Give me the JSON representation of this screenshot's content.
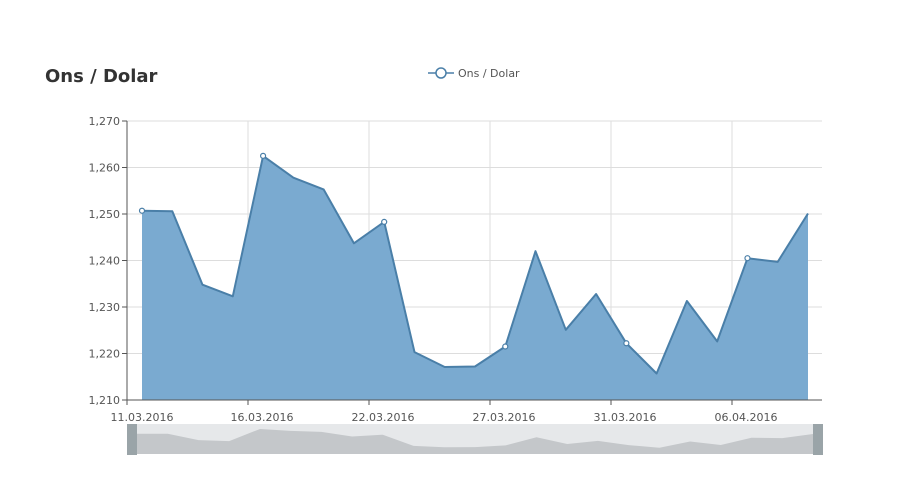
{
  "chart_data": {
    "type": "area",
    "title": "Ons / Dolar",
    "legend": {
      "label": "Ons / Dolar",
      "position": "top-center"
    },
    "xlabel": "",
    "ylabel": "",
    "ylim": [
      1.21,
      1.27
    ],
    "y_ticks": [
      "1,210",
      "1,220",
      "1,230",
      "1,240",
      "1,250",
      "1,260",
      "1,270"
    ],
    "x_tick_labels": [
      "11.03.2016",
      "16.03.2016",
      "22.03.2016",
      "27.03.2016",
      "31.03.2016",
      "06.04.2016"
    ],
    "grid": true,
    "colors": {
      "area": "#7aaad0",
      "line": "#4a7fa8",
      "grid": "#dddddd",
      "navigator_bg": "#e6e8ea",
      "navigator_area": "#c4c7ca",
      "navigator_handle": "#9aa4a8"
    },
    "series": [
      {
        "name": "Ons / Dolar",
        "values": [
          1.2507,
          1.2506,
          1.2348,
          1.2323,
          1.2625,
          1.2578,
          1.2553,
          1.2437,
          1.2483,
          1.2203,
          1.2171,
          1.2172,
          1.2215,
          1.242,
          1.2251,
          1.2328,
          1.2222,
          1.2157,
          1.2313,
          1.2226,
          1.2405,
          1.2397,
          1.2501
        ],
        "markers_at": [
          0,
          4,
          8,
          12,
          16,
          20
        ]
      }
    ]
  }
}
